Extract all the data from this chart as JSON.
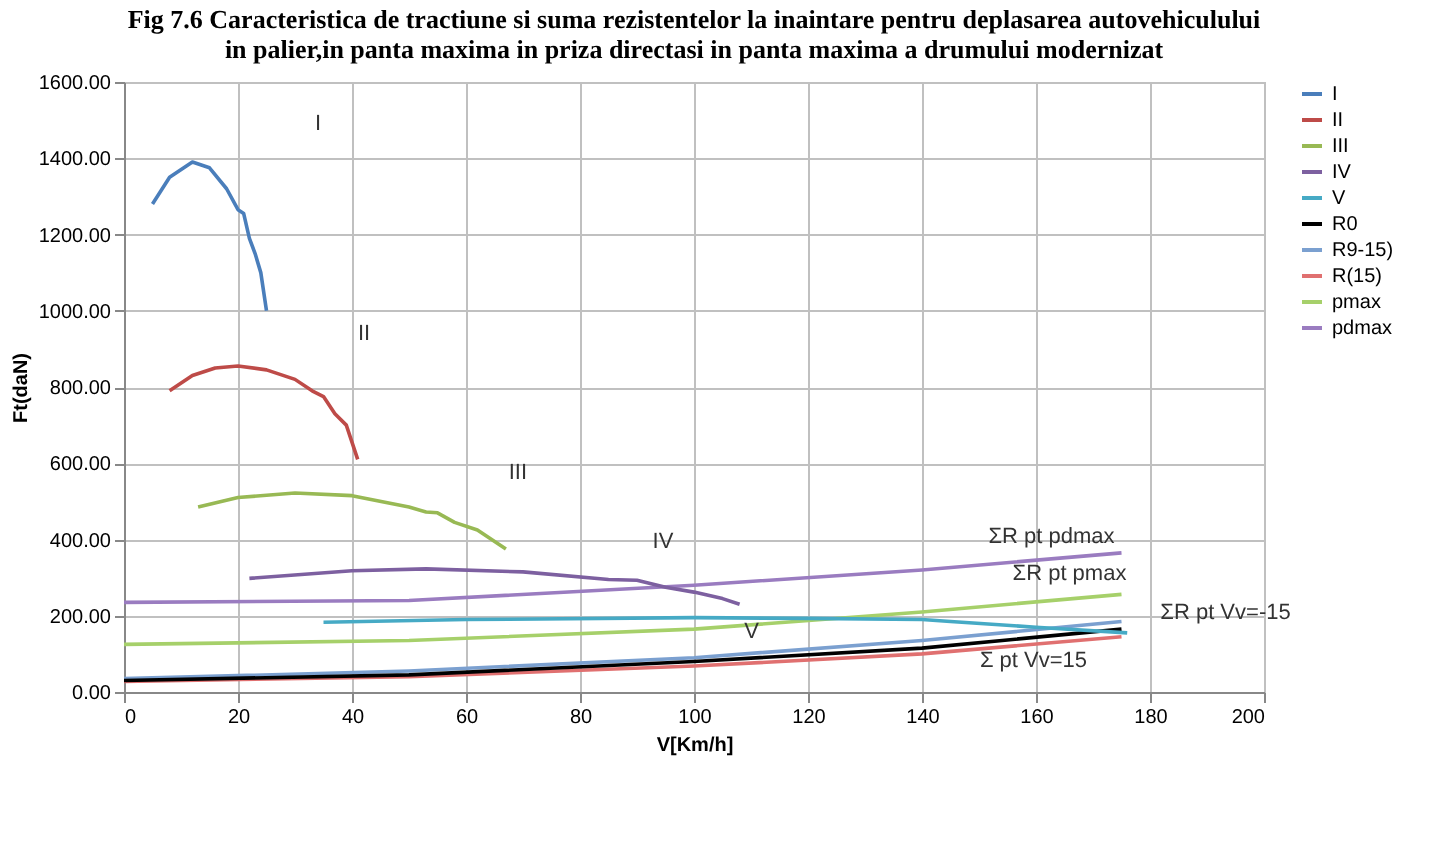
{
  "chart_data": {
    "type": "line",
    "title": "Fig 7.6 Caracteristica de tractiune si suma rezistentelor la inaintare pentru deplasarea autovehiculului\nin palier,in panta maxima in priza directasi in panta maxima a drumului modernizat",
    "xlabel": "V[Km/h]",
    "ylabel": "Ft(daN)",
    "xlim": [
      0,
      200
    ],
    "xticks": [
      0,
      20,
      40,
      60,
      80,
      100,
      120,
      140,
      160,
      180,
      200
    ],
    "ylim": [
      0,
      1600
    ],
    "yticks": [
      {
        "value": 0,
        "label": "0.00"
      },
      {
        "value": 200,
        "label": "200.00"
      },
      {
        "value": 400,
        "label": "400.00"
      },
      {
        "value": 600,
        "label": "600.00"
      },
      {
        "value": 800,
        "label": "800.00"
      },
      {
        "value": 1000,
        "label": "1000.00"
      },
      {
        "value": 1200,
        "label": "1200.00"
      },
      {
        "value": 1400,
        "label": "1400.00"
      },
      {
        "value": 1600,
        "label": "1600.00"
      }
    ],
    "grid": true,
    "legend": "right",
    "marker": "none",
    "line_style": "solid",
    "series": [
      {
        "name": "I",
        "color": "#4a7ebb",
        "x": [
          5,
          8,
          12,
          15,
          18,
          20,
          21,
          22,
          23,
          24,
          25
        ],
        "values": [
          1280,
          1350,
          1390,
          1375,
          1320,
          1265,
          1255,
          1190,
          1150,
          1100,
          1000
        ]
      },
      {
        "name": "II",
        "color": "#be4b48",
        "x": [
          8,
          12,
          16,
          20,
          25,
          30,
          33,
          35,
          37,
          39,
          41
        ],
        "values": [
          790,
          830,
          850,
          855,
          845,
          820,
          790,
          775,
          730,
          700,
          610
        ]
      },
      {
        "name": "III",
        "color": "#98b954",
        "x": [
          13,
          20,
          30,
          40,
          50,
          53,
          55,
          58,
          62,
          67
        ],
        "values": [
          485,
          510,
          522,
          515,
          485,
          472,
          470,
          445,
          425,
          375
        ]
      },
      {
        "name": "IV",
        "color": "#7d60a0",
        "x": [
          22,
          40,
          53,
          70,
          85,
          90,
          95,
          100,
          105,
          108
        ],
        "values": [
          298,
          318,
          323,
          315,
          295,
          293,
          275,
          262,
          245,
          230
        ]
      },
      {
        "name": "V",
        "color": "#46aac5",
        "x": [
          35,
          60,
          100,
          120,
          140,
          145,
          160,
          176
        ],
        "values": [
          183,
          190,
          195,
          193,
          190,
          185,
          170,
          155
        ]
      },
      {
        "name": "R0",
        "color": "#000000",
        "x": [
          0,
          50,
          100,
          140,
          175
        ],
        "values": [
          30,
          45,
          80,
          115,
          165
        ]
      },
      {
        "name": "R9-15)",
        "color": "#7ba0d0",
        "x": [
          0,
          50,
          100,
          140,
          175
        ],
        "values": [
          35,
          55,
          90,
          135,
          185
        ]
      },
      {
        "name": "R(15)",
        "color": "#e07070",
        "x": [
          0,
          50,
          100,
          140,
          175
        ],
        "values": [
          28,
          40,
          68,
          100,
          145
        ]
      },
      {
        "name": "pmax",
        "color": "#a6d06a",
        "x": [
          0,
          50,
          100,
          140,
          175
        ],
        "values": [
          125,
          135,
          165,
          210,
          256
        ]
      },
      {
        "name": "pdmax",
        "color": "#9a7cc0",
        "x": [
          0,
          50,
          100,
          140,
          175
        ],
        "values": [
          235,
          240,
          280,
          320,
          365
        ]
      }
    ],
    "annotations": [
      "I",
      "II",
      {
        "text": "III",
        "x": 67,
        "y": 375
      },
      {
        "text": "IV",
        "x": 90,
        "y": 293
      },
      {
        "text": "V",
        "x": 108,
        "y": 230
      },
      {
        "text": "ΣR pt pdmax",
        "x": 175,
        "y": 365
      },
      {
        "text": "ΣR pt pmax",
        "x": 175,
        "y": 256
      },
      {
        "text": "ΣR pt Vv=-15",
        "x": 175,
        "y": 185
      },
      {
        "text": "Σ pt Vv=15",
        "x": 175,
        "y": 145
      }
    ]
  }
}
